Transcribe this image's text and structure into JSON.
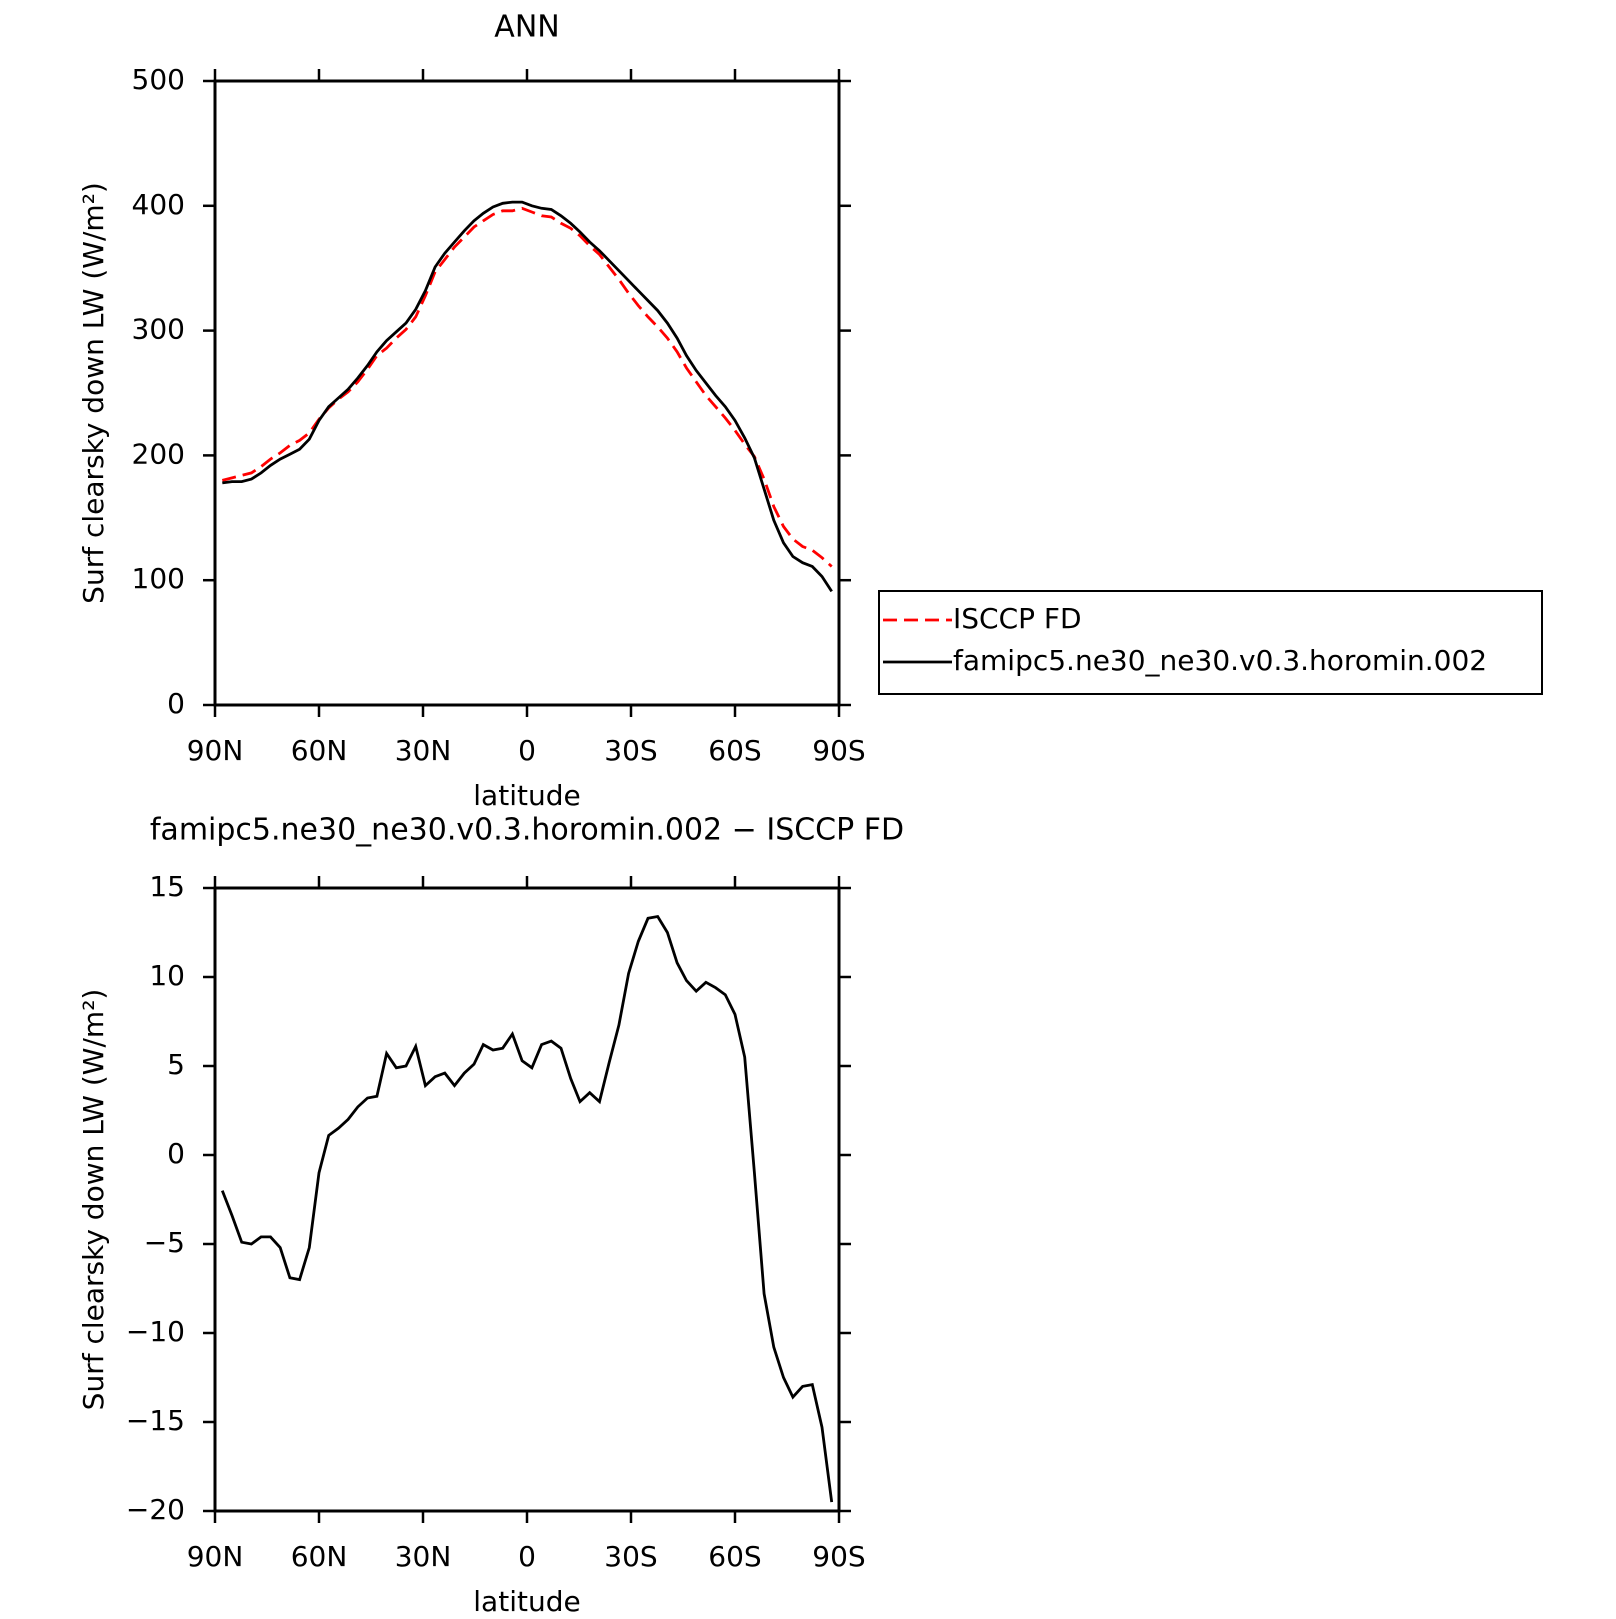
{
  "chart_data": [
    {
      "type": "line",
      "title": "ANN",
      "xlabel": "latitude",
      "ylabel": "Surf clearsky down LW (W/m²)",
      "x": [
        87.9,
        85.1,
        82.3,
        79.5,
        76.7,
        74.0,
        71.2,
        68.4,
        65.6,
        62.8,
        60.0,
        57.2,
        54.4,
        51.6,
        48.8,
        46.0,
        43.3,
        40.5,
        37.7,
        34.9,
        32.1,
        29.3,
        26.5,
        23.7,
        20.9,
        18.1,
        15.3,
        12.6,
        9.8,
        7.0,
        4.2,
        1.4,
        -1.4,
        -4.2,
        -7.0,
        -9.8,
        -12.6,
        -15.3,
        -18.1,
        -20.9,
        -23.7,
        -26.5,
        -29.3,
        -32.1,
        -34.9,
        -37.7,
        -40.5,
        -43.3,
        -46.0,
        -48.8,
        -51.6,
        -54.4,
        -57.2,
        -60.0,
        -62.8,
        -65.6,
        -68.4,
        -71.2,
        -74.0,
        -76.7,
        -79.5,
        -82.3,
        -85.1,
        -87.9
      ],
      "series": [
        {
          "name": "ISCCP FD",
          "color": "#ff0000",
          "dash": true,
          "values": [
            180,
            182,
            184,
            186,
            191,
            197,
            202,
            208,
            212,
            218,
            229,
            238,
            245,
            251,
            259,
            269,
            280,
            286,
            294,
            301,
            311,
            328,
            347,
            357,
            367,
            375,
            383,
            388,
            393,
            396,
            396,
            398,
            395,
            392,
            391,
            386,
            382,
            376,
            368,
            361,
            351,
            341,
            330,
            320,
            311,
            303,
            294,
            283,
            270,
            259,
            248,
            239,
            230,
            220,
            209,
            199,
            181,
            159,
            143,
            133,
            127,
            124,
            118,
            111
          ]
        },
        {
          "name": "famipc5.ne30_ne30.v0.3.horomin.002",
          "color": "#000000",
          "dash": false,
          "values": [
            178,
            179,
            179,
            181,
            186,
            192,
            197,
            201,
            205,
            213,
            228,
            239,
            246,
            253,
            262,
            272,
            283,
            292,
            299,
            306,
            317,
            332,
            351,
            362,
            371,
            380,
            388,
            394,
            399,
            402,
            403,
            403,
            400,
            398,
            397,
            392,
            386,
            379,
            371,
            364,
            356,
            348,
            340,
            332,
            324,
            316,
            306,
            294,
            280,
            268,
            258,
            248,
            239,
            228,
            214,
            198,
            173,
            148,
            130,
            119,
            114,
            111,
            103,
            91
          ]
        }
      ],
      "xlim": [
        90,
        -90
      ],
      "xticks": [
        {
          "value": 90,
          "label": "90N"
        },
        {
          "value": 60,
          "label": "60N"
        },
        {
          "value": 30,
          "label": "30N"
        },
        0,
        {
          "value": -30,
          "label": "30S"
        },
        {
          "value": -60,
          "label": "60S"
        },
        {
          "value": -90,
          "label": "90S"
        }
      ],
      "ylim": [
        0,
        500
      ],
      "yticks": [
        0,
        100,
        200,
        300,
        400,
        500
      ],
      "legend": "outside-right"
    },
    {
      "type": "line",
      "title": "famipc5.ne30_ne30.v0.3.horomin.002 − ISCCP FD",
      "xlabel": "latitude",
      "ylabel": "Surf clearsky down LW (W/m²)",
      "x": [
        87.9,
        85.1,
        82.3,
        79.5,
        76.7,
        74.0,
        71.2,
        68.4,
        65.6,
        62.8,
        60.0,
        57.2,
        54.4,
        51.6,
        48.8,
        46.0,
        43.3,
        40.5,
        37.7,
        34.9,
        32.1,
        29.3,
        26.5,
        23.7,
        20.9,
        18.1,
        15.3,
        12.6,
        9.8,
        7.0,
        4.2,
        1.4,
        -1.4,
        -4.2,
        -7.0,
        -9.8,
        -12.6,
        -15.3,
        -18.1,
        -20.9,
        -23.7,
        -26.5,
        -29.3,
        -32.1,
        -34.9,
        -37.7,
        -40.5,
        -43.3,
        -46.0,
        -48.8,
        -51.6,
        -54.4,
        -57.2,
        -60.0,
        -62.8,
        -65.6,
        -68.4,
        -71.2,
        -74.0,
        -76.7,
        -79.5,
        -82.3,
        -85.1,
        -87.9
      ],
      "values": [
        -2.0,
        -3.4,
        -4.9,
        -5.0,
        -4.6,
        -4.6,
        -5.2,
        -6.9,
        -7.0,
        -5.2,
        -1.0,
        1.1,
        1.5,
        2.0,
        2.7,
        3.2,
        3.3,
        5.7,
        4.9,
        5.0,
        6.1,
        3.9,
        4.4,
        4.6,
        3.9,
        4.6,
        5.1,
        6.2,
        5.9,
        6.0,
        6.8,
        5.3,
        4.9,
        6.2,
        6.4,
        6.0,
        4.3,
        3.0,
        3.5,
        3.0,
        5.2,
        7.3,
        10.2,
        12.0,
        13.3,
        13.4,
        12.5,
        10.8,
        9.8,
        9.2,
        9.7,
        9.4,
        9.0,
        7.9,
        5.5,
        -1.0,
        -7.8,
        -10.8,
        -12.5,
        -13.6,
        -13.0,
        -12.9,
        -15.3,
        -19.5
      ],
      "color": "#000000",
      "xlim": [
        90,
        -90
      ],
      "xticks": [
        {
          "value": 90,
          "label": "90N"
        },
        {
          "value": 60,
          "label": "60N"
        },
        {
          "value": 30,
          "label": "30N"
        },
        0,
        {
          "value": -30,
          "label": "30S"
        },
        {
          "value": -60,
          "label": "60S"
        },
        {
          "value": -90,
          "label": "90S"
        }
      ],
      "ylim": [
        -20,
        15
      ],
      "yticks": [
        {
          "value": -20,
          "label": "−20"
        },
        {
          "value": -15,
          "label": "−15"
        },
        {
          "value": -10,
          "label": "−10"
        },
        {
          "value": -5,
          "label": "−5"
        },
        0,
        5,
        10,
        15
      ]
    }
  ]
}
